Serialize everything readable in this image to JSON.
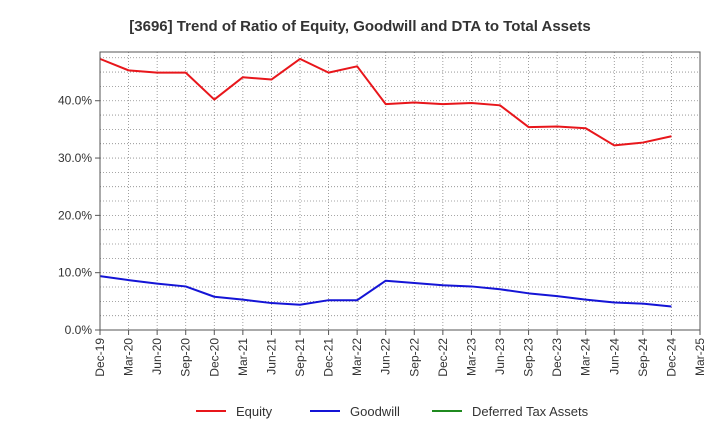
{
  "chart_data": {
    "type": "line",
    "title": "[3696]  Trend of Ratio of Equity, Goodwill and DTA to Total Assets",
    "xlabel": "",
    "ylabel": "",
    "ylim": [
      0,
      48.5
    ],
    "yticks": [
      0,
      10,
      20,
      30,
      40
    ],
    "ytick_labels": [
      "0.0%",
      "10.0%",
      "20.0%",
      "30.0%",
      "40.0%"
    ],
    "x": [
      "Dec-19",
      "Mar-20",
      "Jun-20",
      "Sep-20",
      "Dec-20",
      "Mar-21",
      "Jun-21",
      "Sep-21",
      "Dec-21",
      "Mar-22",
      "Jun-22",
      "Sep-22",
      "Dec-22",
      "Mar-23",
      "Jun-23",
      "Sep-23",
      "Dec-23",
      "Mar-24",
      "Jun-24",
      "Sep-24",
      "Dec-24",
      "Mar-25"
    ],
    "grid": true,
    "legend_position": "bottom",
    "series": [
      {
        "name": "Equity",
        "color": "#e8161b",
        "values": [
          47.3,
          45.3,
          44.9,
          44.9,
          40.2,
          44.1,
          43.7,
          47.3,
          44.9,
          46.0,
          39.4,
          39.7,
          39.4,
          39.6,
          39.2,
          35.4,
          35.5,
          35.2,
          32.2,
          32.7,
          33.8,
          null
        ]
      },
      {
        "name": "Goodwill",
        "color": "#1414d6",
        "values": [
          9.4,
          8.7,
          8.1,
          7.6,
          5.8,
          5.3,
          4.7,
          4.4,
          5.2,
          5.2,
          8.6,
          8.2,
          7.8,
          7.6,
          7.1,
          6.4,
          5.9,
          5.3,
          4.8,
          4.6,
          4.1,
          null
        ]
      },
      {
        "name": "Deferred Tax Assets",
        "color": "#1f8a1f",
        "values": [
          null,
          null,
          null,
          null,
          null,
          null,
          null,
          null,
          null,
          null,
          null,
          null,
          null,
          null,
          null,
          null,
          null,
          null,
          null,
          null,
          null,
          null
        ]
      }
    ]
  }
}
